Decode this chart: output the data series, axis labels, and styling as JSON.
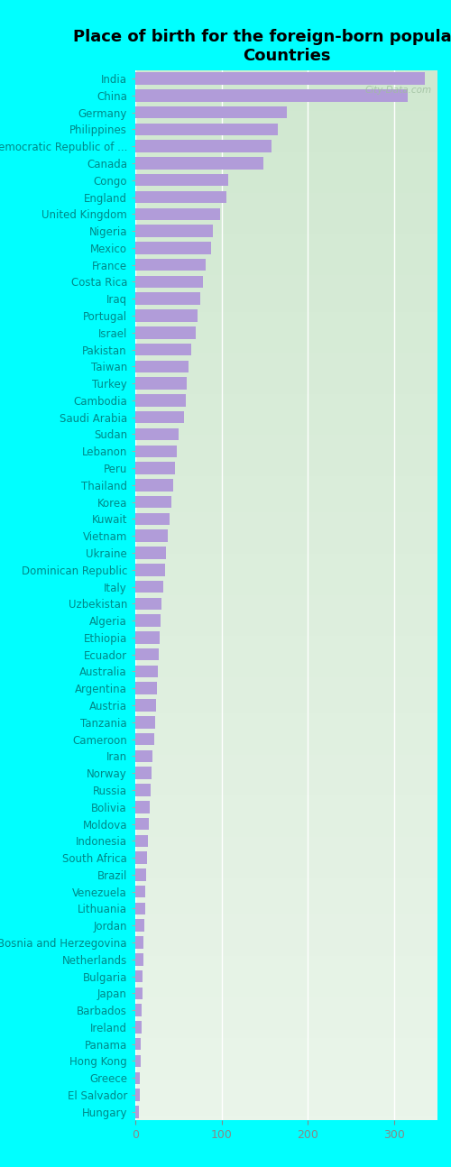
{
  "title": "Place of birth for the foreign-born population -\nCountries",
  "categories": [
    "India",
    "China",
    "Germany",
    "Philippines",
    "Democratic Republic of ...",
    "Canada",
    "Congo",
    "England",
    "United Kingdom",
    "Nigeria",
    "Mexico",
    "France",
    "Costa Rica",
    "Iraq",
    "Portugal",
    "Israel",
    "Pakistan",
    "Taiwan",
    "Turkey",
    "Cambodia",
    "Saudi Arabia",
    "Sudan",
    "Lebanon",
    "Peru",
    "Thailand",
    "Korea",
    "Kuwait",
    "Vietnam",
    "Ukraine",
    "Dominican Republic",
    "Italy",
    "Uzbekistan",
    "Algeria",
    "Ethiopia",
    "Ecuador",
    "Australia",
    "Argentina",
    "Austria",
    "Tanzania",
    "Cameroon",
    "Iran",
    "Norway",
    "Russia",
    "Bolivia",
    "Moldova",
    "Indonesia",
    "South Africa",
    "Brazil",
    "Venezuela",
    "Lithuania",
    "Jordan",
    "Bosnia and Herzegovina",
    "Netherlands",
    "Bulgaria",
    "Japan",
    "Barbados",
    "Ireland",
    "Panama",
    "Hong Kong",
    "Greece",
    "El Salvador",
    "Hungary"
  ],
  "values": [
    335,
    315,
    175,
    165,
    158,
    148,
    108,
    105,
    98,
    90,
    88,
    82,
    78,
    75,
    72,
    70,
    65,
    62,
    60,
    58,
    56,
    50,
    48,
    46,
    44,
    42,
    40,
    38,
    36,
    34,
    32,
    30,
    29,
    28,
    27,
    26,
    25,
    24,
    23,
    22,
    20,
    19,
    18,
    17,
    16,
    15,
    14,
    13,
    12,
    11,
    10,
    9,
    9,
    8,
    8,
    7,
    7,
    6,
    6,
    5,
    5,
    4
  ],
  "bar_color": "#b19cd9",
  "fig_bg_color": "#00ffff",
  "plot_bg_top": "#eaf5ea",
  "plot_bg_bottom": "#d0e8d0",
  "title_fontsize": 13,
  "label_fontsize": 8.5,
  "tick_fontsize": 9,
  "label_color": "#008888",
  "tick_color": "#888888",
  "watermark": "City-Data.com",
  "xlim": [
    0,
    350
  ],
  "xticks": [
    0,
    100,
    200,
    300
  ],
  "bar_height": 0.72,
  "fig_width": 5.0,
  "fig_height": 12.94,
  "dpi": 100
}
